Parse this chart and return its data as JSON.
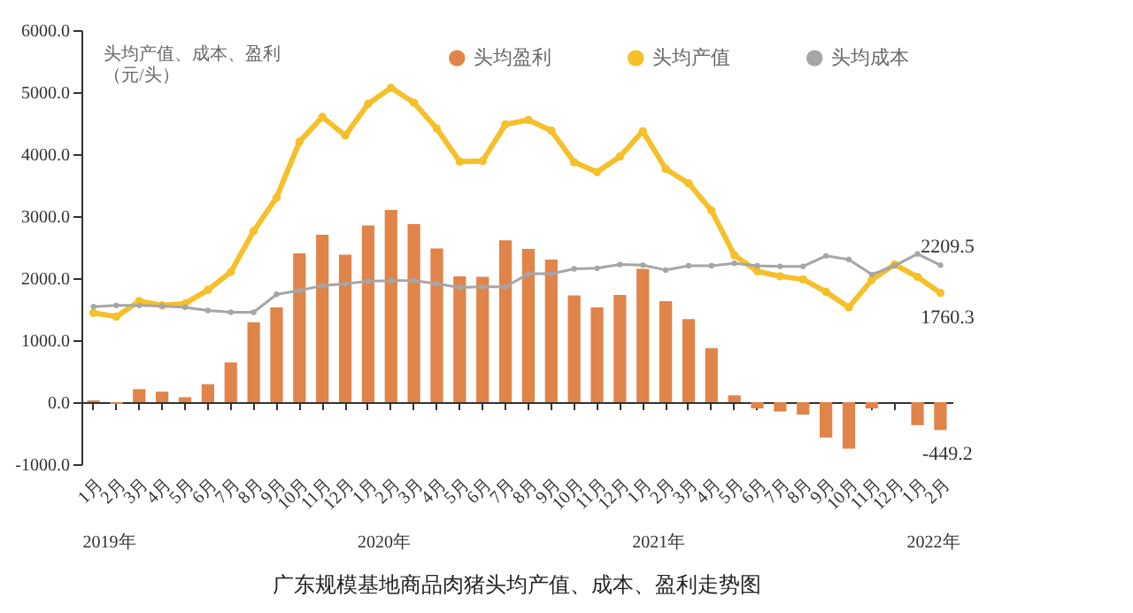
{
  "chart_data": {
    "type": "bar",
    "title": "广东规模基地商品肉猪头均产值、成本、盈利走势图",
    "ylabel": "头均产值、成本、盈利（元/头）",
    "categories": [
      "1月",
      "2月",
      "3月",
      "4月",
      "5月",
      "6月",
      "7月",
      "8月",
      "9月",
      "10月",
      "11月",
      "12月",
      "1月",
      "2月",
      "3月",
      "4月",
      "5月",
      "6月",
      "7月",
      "8月",
      "9月",
      "10月",
      "11月",
      "12月",
      "1月",
      "2月",
      "3月",
      "4月",
      "5月",
      "6月",
      "7月",
      "8月",
      "9月",
      "10月",
      "11月",
      "12月",
      "1月",
      "2月"
    ],
    "annotations": [
      "2019年",
      "2020年",
      "2021年",
      "2022年"
    ],
    "series": [
      {
        "name": "头均盈利",
        "type": "bar",
        "color": "#e0844a",
        "values": [
          30,
          -30,
          210,
          170,
          80,
          290,
          640,
          1290,
          1530,
          2400,
          2700,
          2380,
          2850,
          3100,
          2870,
          2480,
          2030,
          2020,
          2610,
          2470,
          2300,
          1720,
          1530,
          1730,
          2150,
          1630,
          1340,
          870,
          110,
          -100,
          -150,
          -200,
          -570,
          -750,
          -100,
          0,
          -370,
          -449.2
        ],
        "value_labels": [
          null,
          null,
          null,
          null,
          null,
          null,
          null,
          null,
          null,
          null,
          null,
          null,
          null,
          null,
          null,
          null,
          null,
          null,
          null,
          null,
          null,
          null,
          null,
          null,
          null,
          null,
          null,
          null,
          null,
          null,
          null,
          null,
          null,
          null,
          null,
          null,
          null,
          "-449.2"
        ]
      },
      {
        "name": "头均产值",
        "type": "line",
        "color": "#f5c02a",
        "values": [
          1440,
          1380,
          1630,
          1560,
          1590,
          1810,
          2100,
          2760,
          3300,
          4200,
          4600,
          4300,
          4810,
          5070,
          4830,
          4410,
          3880,
          3890,
          4480,
          4550,
          4380,
          3870,
          3710,
          3960,
          4370,
          3760,
          3530,
          3090,
          2370,
          2110,
          2030,
          1980,
          1780,
          1530,
          1970,
          2220,
          2020,
          1760.3
        ],
        "value_labels": [
          null,
          null,
          null,
          null,
          null,
          null,
          null,
          null,
          null,
          null,
          null,
          null,
          null,
          null,
          null,
          null,
          null,
          null,
          null,
          null,
          null,
          null,
          null,
          null,
          null,
          null,
          null,
          null,
          null,
          null,
          null,
          null,
          null,
          null,
          null,
          null,
          null,
          "1760.3"
        ]
      },
      {
        "name": "头均成本",
        "type": "line",
        "color": "#a6a6a6",
        "values": [
          1540,
          1560,
          1560,
          1550,
          1530,
          1480,
          1450,
          1450,
          1740,
          1800,
          1880,
          1910,
          1950,
          1960,
          1960,
          1910,
          1850,
          1860,
          1860,
          2070,
          2070,
          2150,
          2160,
          2220,
          2210,
          2130,
          2200,
          2200,
          2240,
          2200,
          2190,
          2190,
          2360,
          2300,
          2060,
          2200,
          2390,
          2209.5
        ],
        "value_labels": [
          null,
          null,
          null,
          null,
          null,
          null,
          null,
          null,
          null,
          null,
          null,
          null,
          null,
          null,
          null,
          null,
          null,
          null,
          null,
          null,
          null,
          null,
          null,
          null,
          null,
          null,
          null,
          null,
          null,
          null,
          null,
          null,
          null,
          null,
          null,
          null,
          null,
          "2209.5"
        ]
      }
    ],
    "ylim": [
      -1000,
      6000
    ],
    "yticks": [
      {
        "value": -1000,
        "label": "-1000.0"
      },
      {
        "value": 0,
        "label": "0.0"
      },
      {
        "value": 1000,
        "label": "1000.0"
      },
      {
        "value": 2000,
        "label": "2000.0"
      },
      {
        "value": 3000,
        "label": "3000.0"
      },
      {
        "value": 4000,
        "label": "4000.0"
      },
      {
        "value": 5000,
        "label": "5000.0"
      },
      {
        "value": 6000,
        "label": "6000.0"
      }
    ],
    "legend": "top",
    "marker": "circle",
    "line_style": "solid"
  }
}
